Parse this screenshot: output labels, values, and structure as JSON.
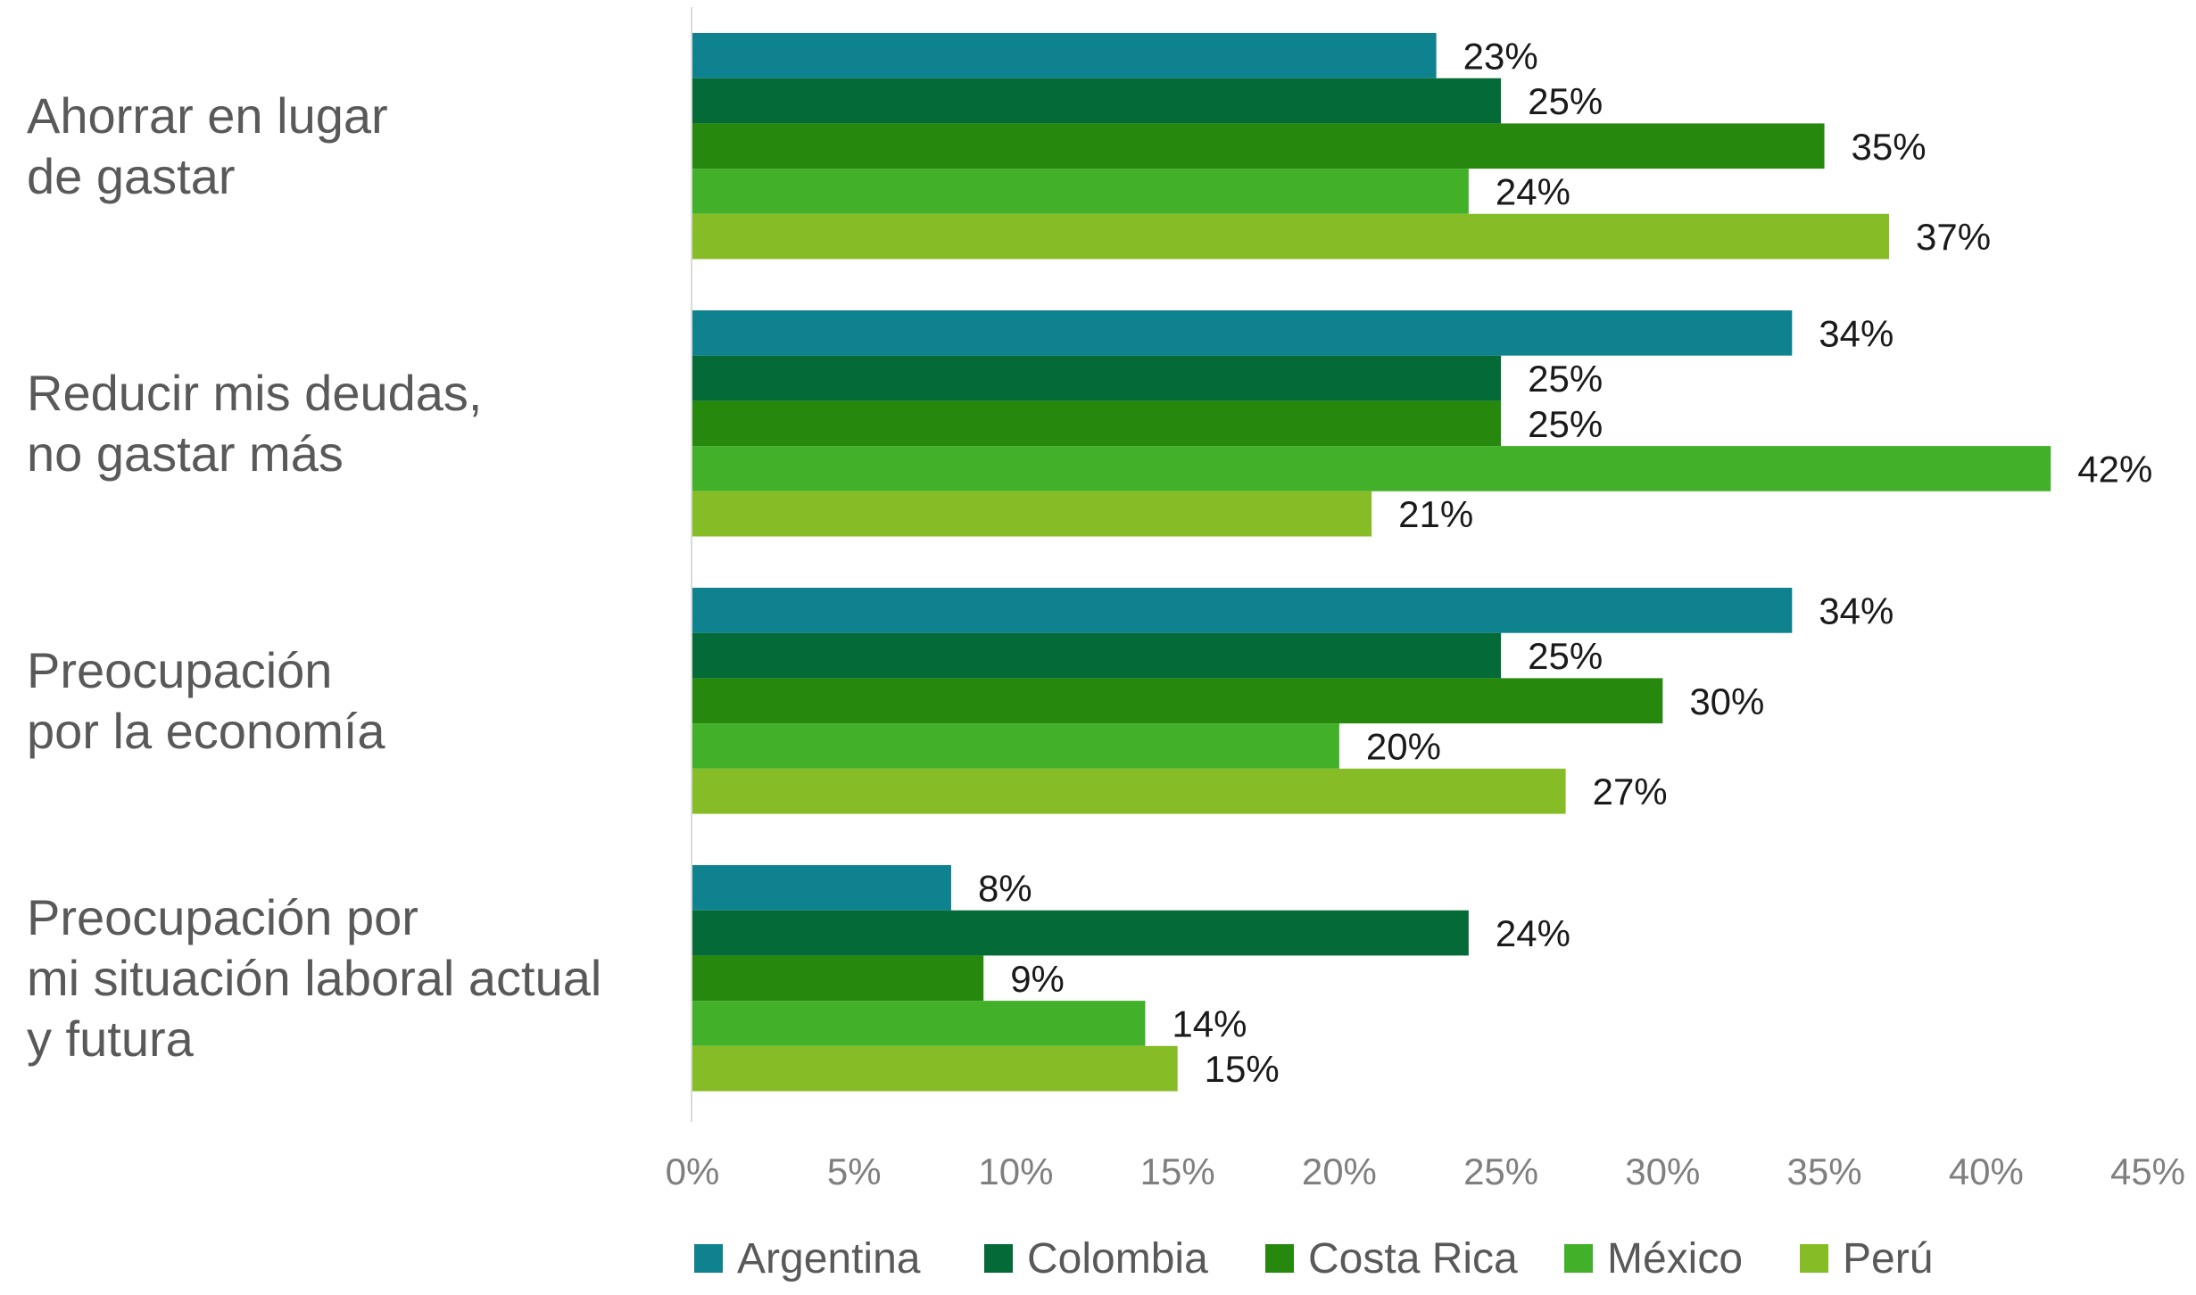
{
  "chart_data": {
    "type": "bar",
    "orientation": "horizontal",
    "title": "",
    "xlabel": "",
    "ylabel": "",
    "xlim": [
      0,
      45
    ],
    "x_ticks": [
      0,
      5,
      10,
      15,
      20,
      25,
      30,
      35,
      40,
      45
    ],
    "tick_suffix": "%",
    "value_suffix": "%",
    "grid": false,
    "legend_position": "bottom",
    "categories": [
      {
        "lines": [
          "Ahorrar en lugar",
          "de gastar"
        ]
      },
      {
        "lines": [
          "Reducir mis deudas,",
          "no gastar más"
        ]
      },
      {
        "lines": [
          "Preocupación",
          "por la economía"
        ]
      },
      {
        "lines": [
          "Preocupación por",
          "mi situación laboral actual",
          "y futura"
        ]
      }
    ],
    "series": [
      {
        "name": "Argentina",
        "color": "#0e828e",
        "values": [
          23,
          34,
          34,
          8
        ]
      },
      {
        "name": "Colombia",
        "color": "#046a38",
        "values": [
          25,
          25,
          25,
          24
        ]
      },
      {
        "name": "Costa Rica",
        "color": "#26890d",
        "values": [
          35,
          25,
          30,
          9
        ]
      },
      {
        "name": "México",
        "color": "#43b02a",
        "values": [
          24,
          42,
          20,
          14
        ]
      },
      {
        "name": "Perú",
        "color": "#86bc25",
        "values": [
          37,
          21,
          27,
          15
        ]
      }
    ]
  }
}
